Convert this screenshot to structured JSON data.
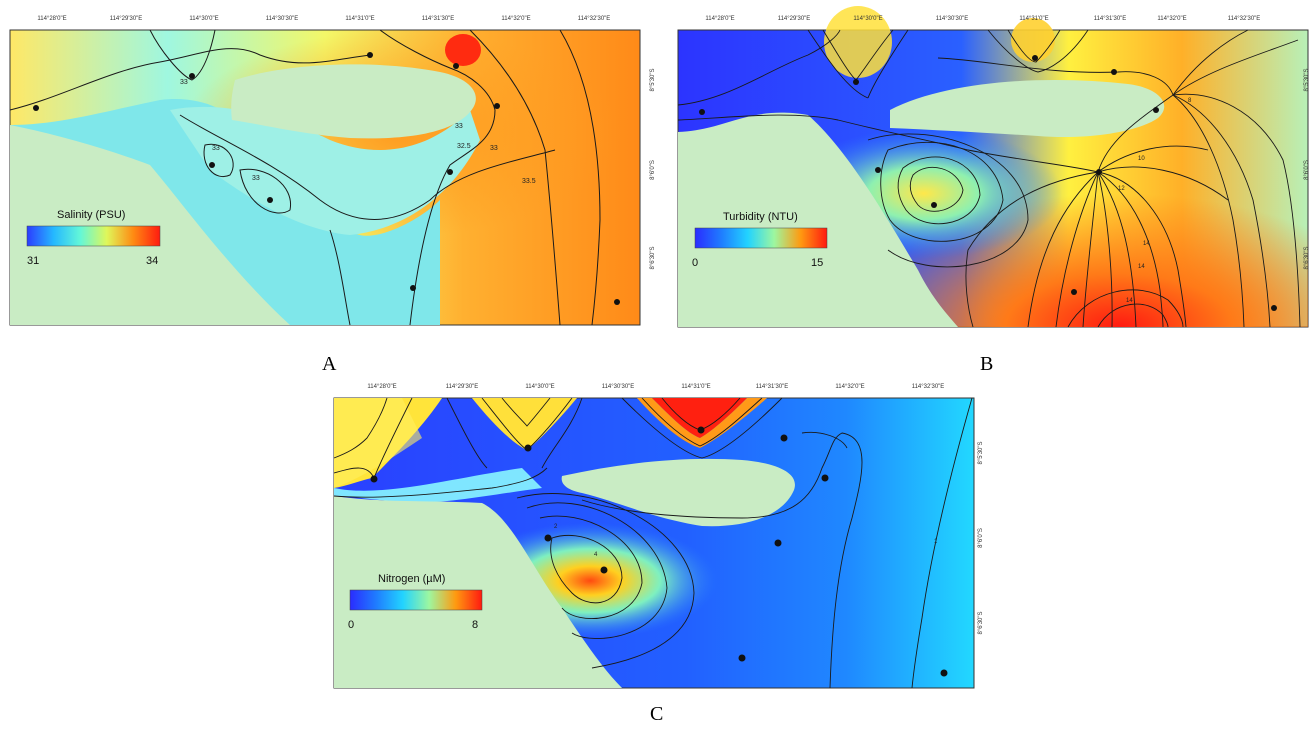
{
  "panels": [
    {
      "id": "A",
      "label": "A",
      "legend": {
        "title": "Salinity (PSU)",
        "min": "31",
        "max": "34"
      },
      "lon_ticks": [
        "114°28'0\"E",
        "114°29'30\"E",
        "114°30'0\"E",
        "114°30'30\"E",
        "114°31'0\"E",
        "114°31'30\"E",
        "114°32'0\"E",
        "114°32'30\"E"
      ],
      "lat_ticks": [
        "8°5'30\"S",
        "8°6'0\"S",
        "8°6'30\"S"
      ],
      "contour_labels": [
        "33",
        "33",
        "33",
        "33",
        "32.5",
        "33",
        "33.5"
      ],
      "colors": [
        "#2b3cff",
        "#25b8ff",
        "#63f7d8",
        "#dff75a",
        "#ffd21a",
        "#ff8a12",
        "#ff1b10"
      ]
    },
    {
      "id": "B",
      "label": "B",
      "legend": {
        "title": "Turbidity (NTU)",
        "min": "0",
        "max": "15"
      },
      "lon_ticks": [
        "114°28'0\"E",
        "114°29'30\"E",
        "114°30'0\"E",
        "114°30'30\"E",
        "114°31'0\"E",
        "114°31'30\"E",
        "114°32'0\"E",
        "114°32'30\"E"
      ],
      "lat_ticks": [
        "8°5'30\"S",
        "8°6'0\"S",
        "8°6'30\"S"
      ],
      "contour_labels": [
        "8",
        "10",
        "12",
        "14",
        "14",
        "14"
      ],
      "colors": [
        "#2a2cff",
        "#1f7dff",
        "#22d3ff",
        "#9df7a0",
        "#fff21c",
        "#ff9a10",
        "#ff1a10"
      ]
    },
    {
      "id": "C",
      "label": "C",
      "legend": {
        "title": "Nitrogen (µM)",
        "min": "0",
        "max": "8"
      },
      "lon_ticks": [
        "114°28'0\"E",
        "114°29'30\"E",
        "114°30'0\"E",
        "114°30'30\"E",
        "114°31'0\"E",
        "114°31'30\"E",
        "114°32'0\"E",
        "114°32'30\"E"
      ],
      "lat_ticks": [
        "8°5'30\"S",
        "8°6'0\"S",
        "8°6'30\"S"
      ],
      "contour_labels": [
        "4",
        "2",
        "1"
      ],
      "colors": [
        "#2a2cff",
        "#1f7dff",
        "#22d3ff",
        "#9df7a0",
        "#fff21c",
        "#ff9a10",
        "#ff1a10"
      ]
    }
  ],
  "land_color": "#c9ecc4"
}
